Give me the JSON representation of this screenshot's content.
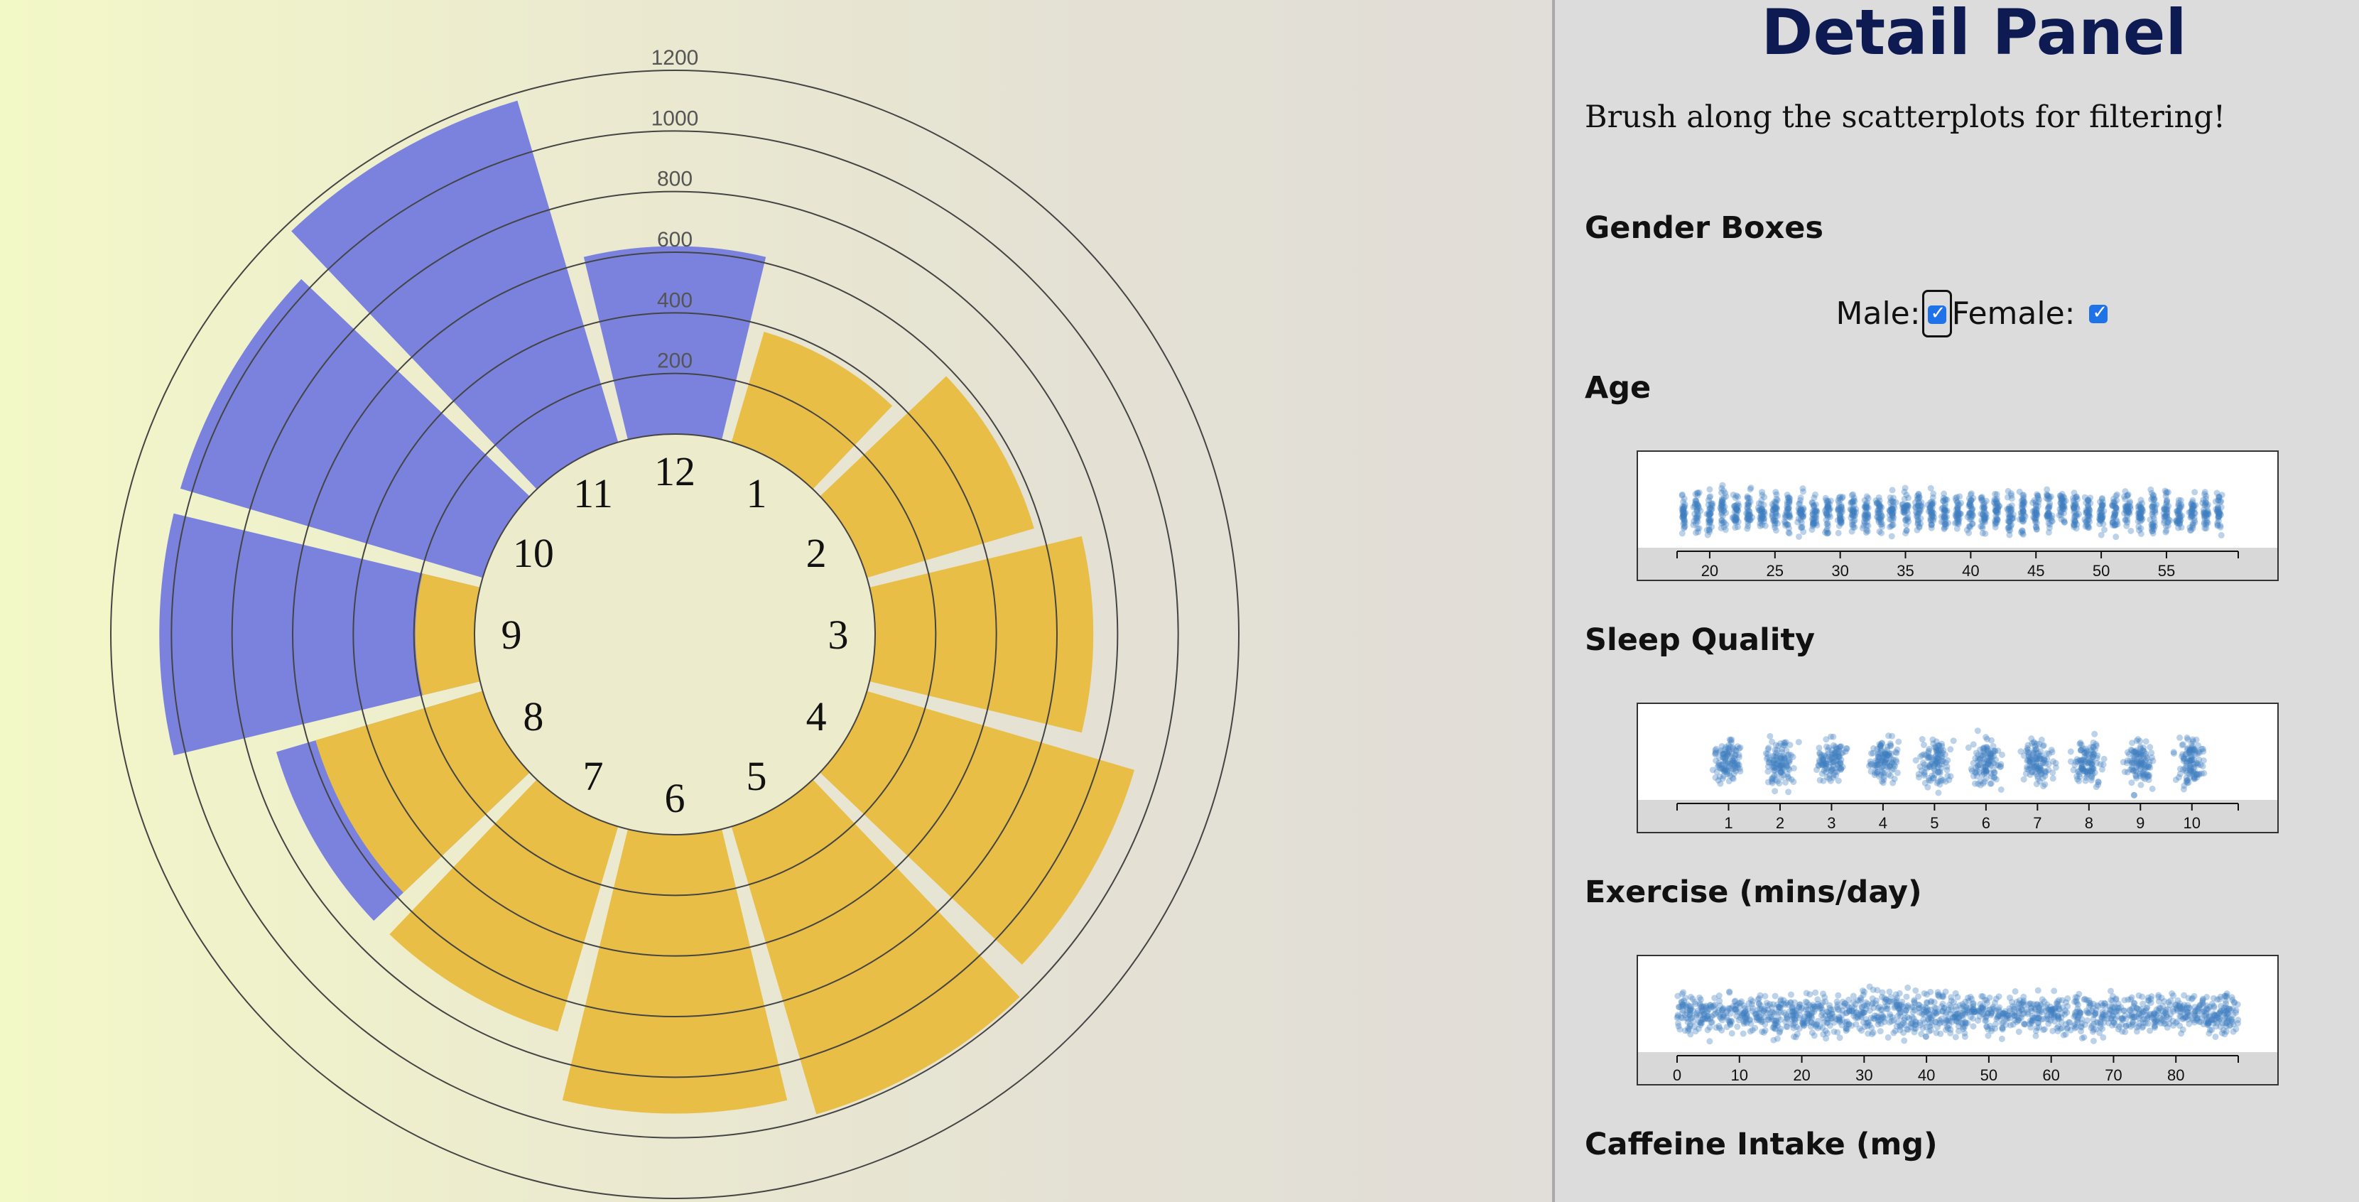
{
  "clock": {
    "radial_ticks": [
      "200",
      "400",
      "600",
      "800",
      "1000",
      "1200"
    ],
    "hour_labels": [
      "12",
      "1",
      "2",
      "3",
      "4",
      "5",
      "6",
      "7",
      "8",
      "9",
      "10",
      "11"
    ]
  },
  "chart_data": {
    "type": "radial-bar",
    "radial_axis": {
      "ticks": [
        200,
        400,
        600,
        800,
        1000,
        1200
      ],
      "range": [
        0,
        1200
      ]
    },
    "categories": [
      "12",
      "1",
      "2",
      "3",
      "4",
      "5",
      "6",
      "7",
      "8",
      "9",
      "10",
      "11"
    ],
    "bars": [
      {
        "hour": 12,
        "value": 620,
        "color": "#7b82de"
      },
      {
        "hour": 1,
        "value": 380,
        "color": "#e9be46"
      },
      {
        "hour": 2,
        "value": 575,
        "color": "#e9be46"
      },
      {
        "hour": 3,
        "value": 720,
        "color": "#e9be46"
      },
      {
        "hour": 4,
        "value": 920,
        "color": "#e9be46"
      },
      {
        "hour": 5,
        "value": 990,
        "color": "#e9be46"
      },
      {
        "hour": 6,
        "value": 920,
        "color": "#e9be46"
      },
      {
        "hour": 7,
        "value": 705,
        "color": "#e9be46"
      },
      {
        "hour": 8,
        "value": 575,
        "color": "#e9be46",
        "overlay_value": 710,
        "overlay_color": "#7b82de"
      },
      {
        "hour": 9,
        "value": 195,
        "color": "#e9be46",
        "overlay_value": 1040,
        "overlay_color": "#7b82de"
      },
      {
        "hour": 10,
        "value": 1040,
        "color": "#7b82de"
      },
      {
        "hour": 11,
        "value": 1175,
        "color": "#7b82de"
      }
    ]
  },
  "panel": {
    "title": "Detail Panel",
    "subtitle": "Brush along the scatterplots for filtering!",
    "gender": {
      "heading": "Gender Boxes",
      "male_label": "Male:",
      "female_label": "Female:",
      "male_checked": true,
      "female_checked": true
    },
    "age": {
      "heading": "Age",
      "ticks": [
        "20",
        "25",
        "30",
        "35",
        "40",
        "45",
        "50",
        "55"
      ]
    },
    "sleep": {
      "heading": "Sleep Quality",
      "ticks": [
        "1",
        "2",
        "3",
        "4",
        "5",
        "6",
        "7",
        "8",
        "9",
        "10"
      ]
    },
    "exercise": {
      "heading": "Exercise (mins/day)",
      "ticks": [
        "0",
        "10",
        "20",
        "30",
        "40",
        "50",
        "60",
        "70",
        "80"
      ]
    },
    "caffeine": {
      "heading": "Caffeine Intake (mg)"
    }
  },
  "colors": {
    "accent_blue": "#7b82de",
    "accent_yellow": "#e9be46",
    "title_navy": "#0d1b52",
    "dot_blue": "#3f7fbf"
  }
}
